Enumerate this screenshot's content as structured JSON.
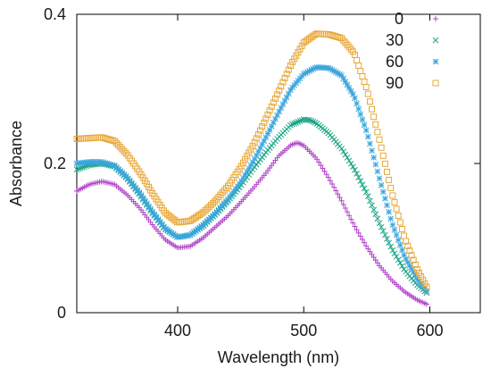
{
  "chart_data": {
    "type": "scatter",
    "xlabel": "Wavelength (nm)",
    "ylabel": "Absorbance",
    "xlim": [
      320,
      640
    ],
    "ylim": [
      0,
      0.4
    ],
    "x_ticks": [
      {
        "value": 400,
        "label": "400"
      },
      {
        "value": 500,
        "label": "500"
      },
      {
        "value": 600,
        "label": "600"
      }
    ],
    "y_ticks": [
      {
        "value": 0,
        "label": "0"
      },
      {
        "value": 0.2,
        "label": "0.2"
      },
      {
        "value": 0.4,
        "label": "0.4"
      }
    ],
    "grid": false,
    "legend_position": "top-right",
    "series": [
      {
        "name": "0",
        "color": "#b042c8",
        "marker": "plus",
        "points": [
          [
            320,
            0.163
          ],
          [
            330,
            0.172
          ],
          [
            340,
            0.176
          ],
          [
            350,
            0.172
          ],
          [
            360,
            0.158
          ],
          [
            370,
            0.14
          ],
          [
            380,
            0.118
          ],
          [
            390,
            0.098
          ],
          [
            400,
            0.087
          ],
          [
            410,
            0.089
          ],
          [
            420,
            0.1
          ],
          [
            430,
            0.115
          ],
          [
            440,
            0.13
          ],
          [
            450,
            0.148
          ],
          [
            460,
            0.167
          ],
          [
            470,
            0.187
          ],
          [
            480,
            0.21
          ],
          [
            490,
            0.225
          ],
          [
            495,
            0.228
          ],
          [
            500,
            0.224
          ],
          [
            510,
            0.207
          ],
          [
            520,
            0.18
          ],
          [
            530,
            0.15
          ],
          [
            540,
            0.117
          ],
          [
            550,
            0.088
          ],
          [
            560,
            0.063
          ],
          [
            570,
            0.043
          ],
          [
            580,
            0.028
          ],
          [
            590,
            0.017
          ],
          [
            598,
            0.011
          ]
        ]
      },
      {
        "name": "30",
        "color": "#18a383",
        "marker": "cross",
        "points": [
          [
            320,
            0.192
          ],
          [
            330,
            0.198
          ],
          [
            340,
            0.2
          ],
          [
            350,
            0.196
          ],
          [
            360,
            0.18
          ],
          [
            370,
            0.158
          ],
          [
            380,
            0.133
          ],
          [
            390,
            0.112
          ],
          [
            400,
            0.101
          ],
          [
            410,
            0.104
          ],
          [
            420,
            0.116
          ],
          [
            430,
            0.132
          ],
          [
            440,
            0.15
          ],
          [
            450,
            0.17
          ],
          [
            460,
            0.193
          ],
          [
            470,
            0.215
          ],
          [
            480,
            0.235
          ],
          [
            490,
            0.252
          ],
          [
            500,
            0.259
          ],
          [
            505,
            0.258
          ],
          [
            510,
            0.254
          ],
          [
            520,
            0.24
          ],
          [
            530,
            0.22
          ],
          [
            540,
            0.193
          ],
          [
            550,
            0.16
          ],
          [
            560,
            0.12
          ],
          [
            570,
            0.085
          ],
          [
            580,
            0.057
          ],
          [
            590,
            0.037
          ],
          [
            598,
            0.026
          ]
        ]
      },
      {
        "name": "60",
        "color": "#3aa6dc",
        "marker": "star",
        "points": [
          [
            320,
            0.2
          ],
          [
            330,
            0.202
          ],
          [
            340,
            0.202
          ],
          [
            350,
            0.197
          ],
          [
            360,
            0.181
          ],
          [
            370,
            0.16
          ],
          [
            380,
            0.135
          ],
          [
            390,
            0.113
          ],
          [
            400,
            0.101
          ],
          [
            410,
            0.104
          ],
          [
            420,
            0.117
          ],
          [
            430,
            0.133
          ],
          [
            440,
            0.152
          ],
          [
            450,
            0.175
          ],
          [
            460,
            0.203
          ],
          [
            470,
            0.235
          ],
          [
            480,
            0.268
          ],
          [
            490,
            0.3
          ],
          [
            500,
            0.32
          ],
          [
            510,
            0.329
          ],
          [
            520,
            0.328
          ],
          [
            530,
            0.318
          ],
          [
            540,
            0.29
          ],
          [
            550,
            0.242
          ],
          [
            560,
            0.18
          ],
          [
            570,
            0.12
          ],
          [
            580,
            0.075
          ],
          [
            590,
            0.045
          ],
          [
            598,
            0.028
          ]
        ]
      },
      {
        "name": "90",
        "color": "#e8a838",
        "marker": "square",
        "points": [
          [
            320,
            0.233
          ],
          [
            330,
            0.234
          ],
          [
            340,
            0.235
          ],
          [
            350,
            0.23
          ],
          [
            360,
            0.212
          ],
          [
            370,
            0.188
          ],
          [
            380,
            0.16
          ],
          [
            390,
            0.134
          ],
          [
            400,
            0.121
          ],
          [
            410,
            0.123
          ],
          [
            420,
            0.134
          ],
          [
            430,
            0.15
          ],
          [
            440,
            0.17
          ],
          [
            450,
            0.195
          ],
          [
            460,
            0.225
          ],
          [
            470,
            0.26
          ],
          [
            480,
            0.296
          ],
          [
            490,
            0.333
          ],
          [
            500,
            0.362
          ],
          [
            510,
            0.374
          ],
          [
            520,
            0.373
          ],
          [
            530,
            0.368
          ],
          [
            540,
            0.348
          ],
          [
            550,
            0.3
          ],
          [
            560,
            0.232
          ],
          [
            570,
            0.16
          ],
          [
            580,
            0.1
          ],
          [
            590,
            0.058
          ],
          [
            598,
            0.033
          ]
        ]
      }
    ]
  }
}
